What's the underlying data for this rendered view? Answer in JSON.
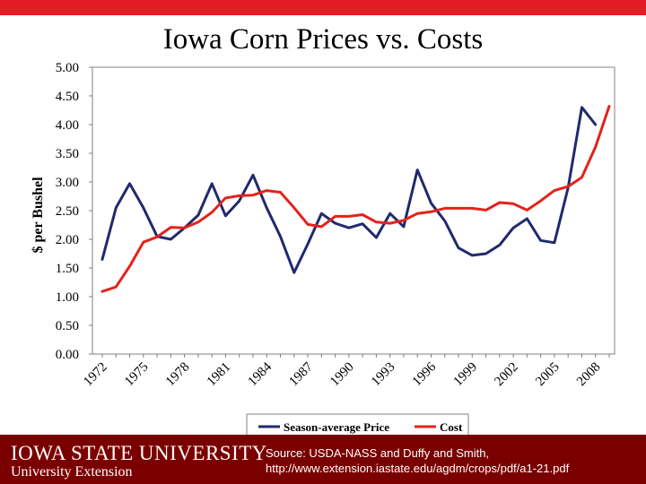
{
  "slide": {
    "title": "Iowa Corn Prices vs. Costs",
    "brand_main": "IOWA STATE UNIVERSITY",
    "brand_sub": "University Extension",
    "source_line1": "Source: USDA-NASS and Duffy and Smith,",
    "source_line2": "http://www.extension.iastate.edu/agdm/crops/pdf/a1-21.pdf"
  },
  "colors": {
    "top_bar": "#e31b23",
    "footer": "#7a0000",
    "price_line": "#1f2a6e",
    "cost_line": "#e3231b"
  },
  "chart_data": {
    "type": "line",
    "title": "Iowa Corn Prices vs. Costs",
    "xlabel": "",
    "ylabel": "$ per Bushel",
    "ylim": [
      0,
      5
    ],
    "yticks": [
      "0.00",
      "0.50",
      "1.00",
      "1.50",
      "2.00",
      "2.50",
      "3.00",
      "3.50",
      "4.00",
      "4.50",
      "5.00"
    ],
    "x": [
      1972,
      1973,
      1974,
      1975,
      1976,
      1977,
      1978,
      1979,
      1980,
      1981,
      1982,
      1983,
      1984,
      1985,
      1986,
      1987,
      1988,
      1989,
      1990,
      1991,
      1992,
      1993,
      1994,
      1995,
      1996,
      1997,
      1998,
      1999,
      2000,
      2001,
      2002,
      2003,
      2004,
      2005,
      2006,
      2007,
      2008,
      2009
    ],
    "xticks": [
      "1972",
      "1975",
      "1978",
      "1981",
      "1984",
      "1987",
      "1990",
      "1993",
      "1996",
      "1999",
      "2002",
      "2005",
      "2008"
    ],
    "legend_position": "bottom",
    "series": [
      {
        "name": "Season-average Price",
        "color": "#1f2a6e",
        "values": [
          1.65,
          2.55,
          2.97,
          2.55,
          2.05,
          2.0,
          2.2,
          2.42,
          2.97,
          2.41,
          2.67,
          3.12,
          2.55,
          2.05,
          1.42,
          1.92,
          2.45,
          2.28,
          2.2,
          2.27,
          2.03,
          2.45,
          2.22,
          3.21,
          2.63,
          2.32,
          1.85,
          1.72,
          1.75,
          1.9,
          2.2,
          2.36,
          1.98,
          1.94,
          2.9,
          4.3,
          4.0,
          null
        ]
      },
      {
        "name": "Cost",
        "color": "#e3231b",
        "values": [
          1.09,
          1.17,
          1.53,
          1.95,
          2.04,
          2.21,
          2.2,
          2.3,
          2.47,
          2.72,
          2.76,
          2.77,
          2.85,
          2.82,
          2.55,
          2.26,
          2.22,
          2.4,
          2.4,
          2.43,
          2.3,
          2.28,
          2.33,
          2.45,
          2.48,
          2.54,
          2.54,
          2.54,
          2.51,
          2.64,
          2.62,
          2.51,
          2.67,
          2.85,
          2.92,
          3.08,
          3.61,
          4.32
        ]
      }
    ]
  }
}
